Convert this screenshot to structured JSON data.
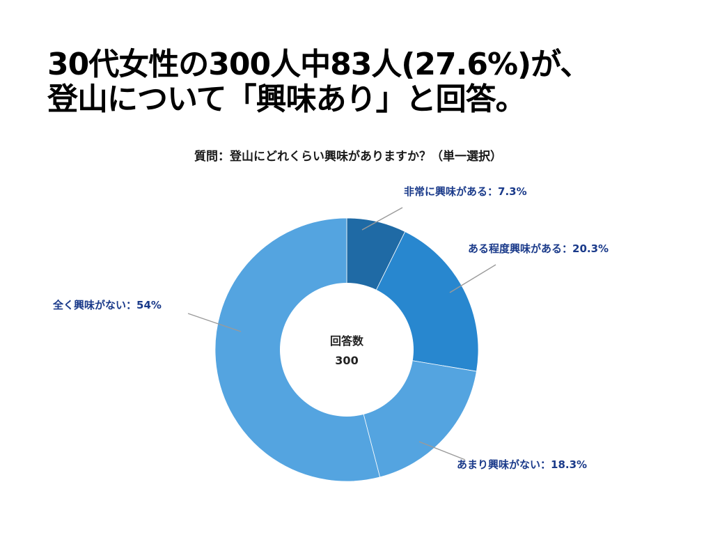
{
  "headline": {
    "line1": "30代女性の300人中83人(27.6%)が、",
    "line2": "登山について「興味あり」と回答。"
  },
  "chart_data": {
    "type": "pie",
    "donut": true,
    "title": "質問：登山にどれくらい興味がありますか？（単一選択）",
    "center_label": "回答数",
    "center_value": "300",
    "slices": [
      {
        "label": "非常に興味がある：7.3%",
        "value": 7.3,
        "color": "#1f6aa5"
      },
      {
        "label": "ある程度興味がある：20.3%",
        "value": 20.3,
        "color": "#2887cf"
      },
      {
        "label": "あまり興味がない：18.3%",
        "value": 18.3,
        "color": "#54a4e0"
      },
      {
        "label": "全く興味がない：54%",
        "value": 54,
        "color": "#54a4e0"
      }
    ],
    "legend": "none"
  }
}
